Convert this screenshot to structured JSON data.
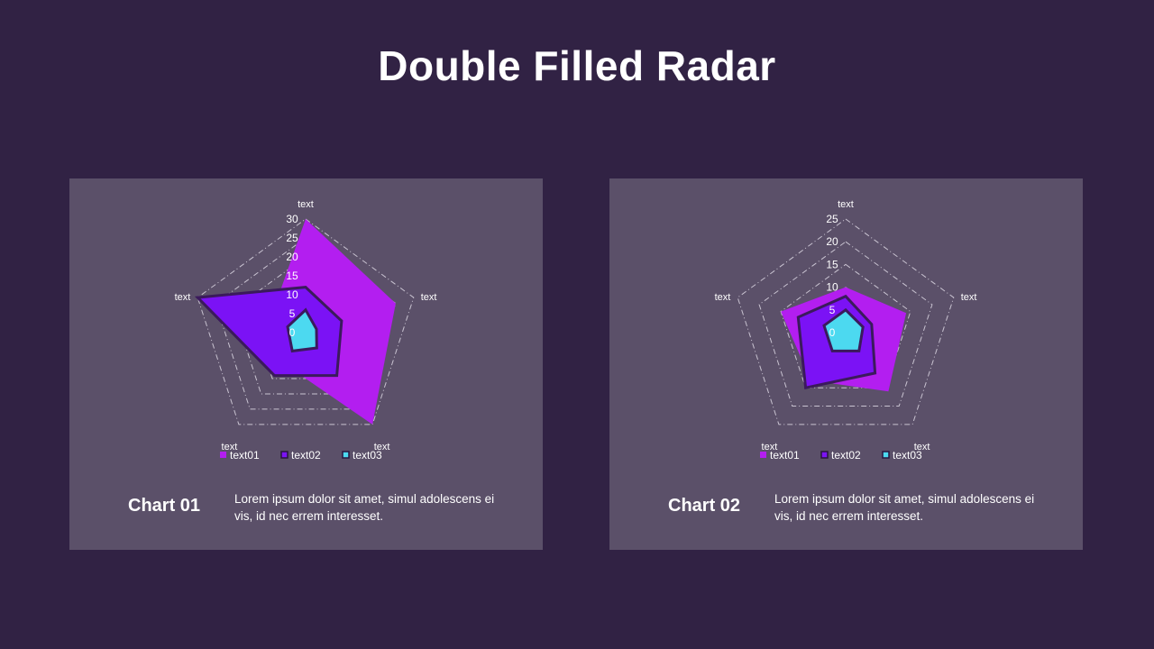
{
  "title": "Double Filled Radar",
  "charts": [
    {
      "label": "Chart 01",
      "description": "Lorem ipsum dolor sit amet, simul adolescens ei vis, id nec errem interesset."
    },
    {
      "label": "Chart 02",
      "description": "Lorem ipsum dolor sit amet, simul adolescens ei vis, id nec errem interesset."
    }
  ],
  "chart_data": [
    {
      "type": "radar",
      "categories": [
        "text",
        "text",
        "text",
        "text",
        "text"
      ],
      "rmax": 30,
      "ticks": [
        0,
        5,
        10,
        15,
        20,
        25,
        30
      ],
      "tick_labels": [
        "0",
        "5",
        "10",
        "15",
        "20",
        "25",
        "30"
      ],
      "legend_position": "bottom",
      "series": [
        {
          "name": "text01",
          "values": [
            30,
            25,
            30,
            10,
            10
          ],
          "color": "#b31ef0",
          "outline": false
        },
        {
          "name": "text02",
          "values": [
            12,
            10,
            14,
            14,
            30
          ],
          "color": "#7b12f5",
          "outline": true
        },
        {
          "name": "text03",
          "values": [
            6,
            3,
            5,
            6,
            5
          ],
          "color": "#4cd9f0",
          "outline": true
        }
      ]
    },
    {
      "type": "radar",
      "categories": [
        "text",
        "text",
        "text",
        "text",
        "text"
      ],
      "rmax": 25,
      "ticks": [
        0,
        5,
        10,
        15,
        20,
        25
      ],
      "tick_labels": [
        "0",
        "5",
        "10",
        "15",
        "20",
        "25"
      ],
      "legend_position": "bottom",
      "series": [
        {
          "name": "text01",
          "values": [
            10,
            14,
            16,
            13,
            15
          ],
          "color": "#b31ef0",
          "outline": false
        },
        {
          "name": "text02",
          "values": [
            8,
            6,
            11,
            15,
            11
          ],
          "color": "#7b12f5",
          "outline": true
        },
        {
          "name": "text03",
          "values": [
            5,
            4,
            5,
            5,
            5
          ],
          "color": "#4cd9f0",
          "outline": true
        }
      ]
    }
  ]
}
